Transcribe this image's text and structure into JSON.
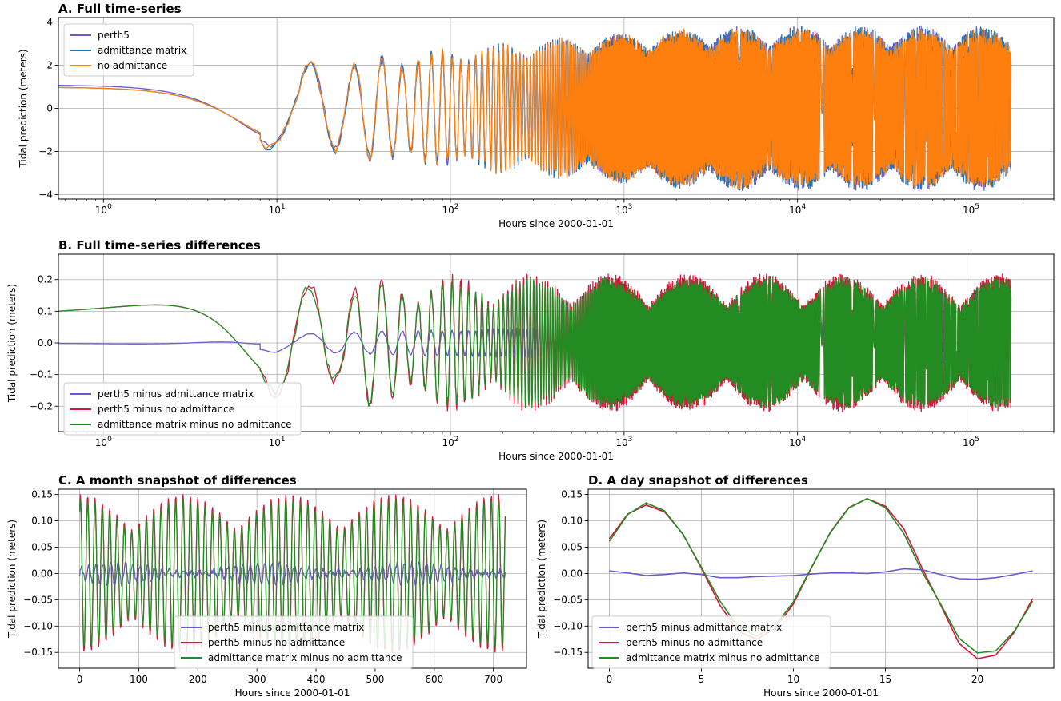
{
  "chart_data": [
    {
      "id": "A",
      "type": "line",
      "title": "A. Full time-series",
      "xlabel": "Hours since 2000-01-01",
      "ylabel": "Tidal prediction (meters)",
      "xscale": "log",
      "xlim": [
        0.55,
        300000
      ],
      "ylim": [
        -4.2,
        4.2
      ],
      "yticks": [
        -4,
        -2,
        0,
        2,
        4
      ],
      "yticklabels": [
        "−4",
        "−2",
        "0",
        "2",
        "4"
      ],
      "xticks": [
        1,
        10,
        100,
        1000,
        10000,
        100000
      ],
      "xticklabels": [
        [
          "10",
          "0"
        ],
        [
          "10",
          "1"
        ],
        [
          "10",
          "2"
        ],
        [
          "10",
          "3"
        ],
        [
          "10",
          "4"
        ],
        [
          "10",
          "5"
        ]
      ],
      "grid": true,
      "legend": "top-left",
      "series": [
        {
          "name": "perth5",
          "color": "#6a5acd",
          "amp": 3.5,
          "offset": 1.1
        },
        {
          "name": "admittance matrix",
          "color": "#1f77b4",
          "amp": 3.5,
          "offset": 1.0
        },
        {
          "name": "no admittance",
          "color": "#ff7f0e",
          "amp": 3.4,
          "offset": 1.0
        }
      ]
    },
    {
      "id": "B",
      "type": "line",
      "title": "B. Full time-series differences",
      "xlabel": "Hours since 2000-01-01",
      "ylabel": "Tidal prediction (meters)",
      "xscale": "log",
      "xlim": [
        0.55,
        300000
      ],
      "ylim": [
        -0.28,
        0.28
      ],
      "yticks": [
        -0.2,
        -0.1,
        0.0,
        0.1,
        0.2
      ],
      "yticklabels": [
        "−0.2",
        "−0.1",
        "0.0",
        "0.1",
        "0.2"
      ],
      "xticks": [
        1,
        10,
        100,
        1000,
        10000,
        100000
      ],
      "xticklabels": [
        [
          "10",
          "0"
        ],
        [
          "10",
          "1"
        ],
        [
          "10",
          "2"
        ],
        [
          "10",
          "3"
        ],
        [
          "10",
          "4"
        ],
        [
          "10",
          "5"
        ]
      ],
      "grid": true,
      "legend": "bottom-left",
      "series": [
        {
          "name": "perth5 minus admittance matrix",
          "color": "#6a5acd",
          "amp": 0.06,
          "offset": 0.0
        },
        {
          "name": "perth5 minus no admittance",
          "color": "#dc143c",
          "amp": 0.2,
          "offset": 0.11
        },
        {
          "name": "admittance matrix minus no admittance",
          "color": "#228b22",
          "amp": 0.19,
          "offset": 0.11
        }
      ]
    },
    {
      "id": "C",
      "type": "line",
      "title": "C. A month snapshot of differences",
      "xlabel": "Hours since 2000-01-01",
      "ylabel": "Tidal prediction (meters)",
      "xscale": "linear",
      "xlim": [
        -36,
        756
      ],
      "ylim": [
        -0.18,
        0.16
      ],
      "yticks": [
        -0.15,
        -0.1,
        -0.05,
        0.0,
        0.05,
        0.1,
        0.15
      ],
      "yticklabels": [
        "−0.15",
        "−0.10",
        "−0.05",
        "0.00",
        "0.05",
        "0.10",
        "0.15"
      ],
      "xticks": [
        0,
        100,
        200,
        300,
        400,
        500,
        600,
        700
      ],
      "xticklabels": [
        "0",
        "100",
        "200",
        "300",
        "400",
        "500",
        "600",
        "700"
      ],
      "grid": true,
      "legend": "bottom-center",
      "series": [
        {
          "name": "perth5 minus admittance matrix",
          "color": "#6a5acd",
          "amp": 0.02
        },
        {
          "name": "perth5 minus no admittance",
          "color": "#dc143c",
          "amp": 0.15
        },
        {
          "name": "admittance matrix minus no admittance",
          "color": "#228b22",
          "amp": 0.14
        }
      ]
    },
    {
      "id": "D",
      "type": "line",
      "title": "D. A day snapshot of differences",
      "xlabel": "Hours since 2000-01-01",
      "ylabel": "Tidal prediction (meters)",
      "xscale": "linear",
      "xlim": [
        -1.15,
        24.15
      ],
      "ylim": [
        -0.18,
        0.16
      ],
      "yticks": [
        -0.15,
        -0.1,
        -0.05,
        0.0,
        0.05,
        0.1,
        0.15
      ],
      "yticklabels": [
        "−0.15",
        "−0.10",
        "−0.05",
        "0.00",
        "0.05",
        "0.10",
        "0.15"
      ],
      "xticks": [
        0,
        5,
        10,
        15,
        20
      ],
      "xticklabels": [
        "0",
        "5",
        "10",
        "15",
        "20"
      ],
      "grid": true,
      "legend": "bottom-left",
      "x": [
        0,
        1,
        2,
        3,
        4,
        5,
        6,
        7,
        8,
        9,
        10,
        11,
        12,
        13,
        14,
        15,
        16,
        17,
        18,
        19,
        20,
        21,
        22,
        23
      ],
      "series": [
        {
          "name": "perth5 minus admittance matrix",
          "color": "#6a5acd",
          "values": [
            0.005,
            0.001,
            -0.004,
            -0.002,
            0.001,
            -0.002,
            -0.008,
            -0.008,
            -0.006,
            -0.005,
            -0.004,
            -0.001,
            0.001,
            0.001,
            0.0,
            0.003,
            0.009,
            0.007,
            -0.002,
            -0.01,
            -0.011,
            -0.008,
            -0.002,
            0.005
          ]
        },
        {
          "name": "perth5 minus no admittance",
          "color": "#dc143c",
          "values": [
            0.066,
            0.113,
            0.13,
            0.117,
            0.075,
            0.01,
            -0.06,
            -0.11,
            -0.125,
            -0.105,
            -0.058,
            0.012,
            0.078,
            0.125,
            0.142,
            0.128,
            0.085,
            0.01,
            -0.06,
            -0.133,
            -0.162,
            -0.155,
            -0.112,
            -0.048
          ]
        },
        {
          "name": "admittance matrix minus no admittance",
          "color": "#228b22",
          "values": [
            0.061,
            0.112,
            0.134,
            0.119,
            0.074,
            0.012,
            -0.052,
            -0.102,
            -0.119,
            -0.1,
            -0.054,
            0.013,
            0.077,
            0.124,
            0.142,
            0.125,
            0.076,
            0.003,
            -0.058,
            -0.123,
            -0.151,
            -0.147,
            -0.11,
            -0.053
          ]
        }
      ]
    }
  ]
}
